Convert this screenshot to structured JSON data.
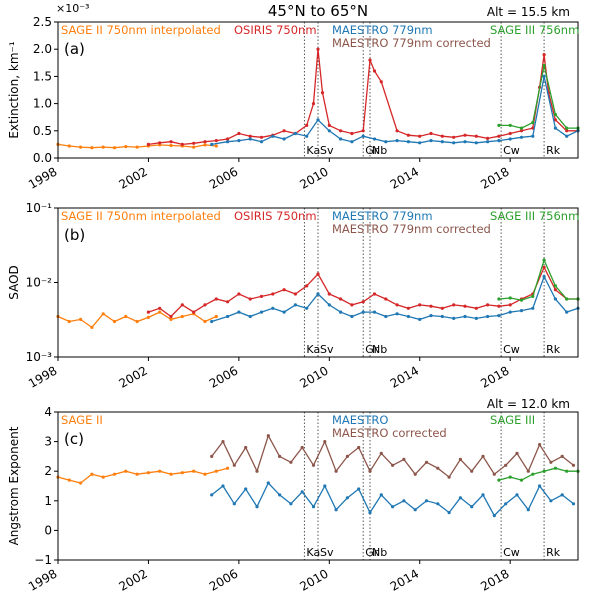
{
  "figure_title": "45°N to 65°N",
  "eras": [
    {
      "key": "ka",
      "label": "Ka",
      "x": 2008.9
    },
    {
      "key": "sv",
      "label": "Sv",
      "x": 2009.5
    },
    {
      "key": "gr",
      "label": "Gr",
      "x": 2011.5
    },
    {
      "key": "nb",
      "label": "Nb",
      "x": 2011.8
    },
    {
      "key": "cw",
      "label": "Cw",
      "x": 2017.6
    },
    {
      "key": "rk",
      "label": "Rk",
      "x": 2019.5
    }
  ],
  "colors": {
    "sage2": "#ff7f0e",
    "osiris": "#d62728",
    "maestro": "#1f77b4",
    "maestro_corr": "#8c564b",
    "sage3": "#2ca02c"
  },
  "chart_data": [
    {
      "type": "line",
      "panel": "(a)",
      "altitude": "Alt = 15.5 km",
      "scale_note": "×10⁻³",
      "ylabel": "Extinction, km⁻¹",
      "ylim": [
        0,
        2.5
      ],
      "yticks": [
        "0.0",
        "0.5",
        "1.0",
        "1.5",
        "2.0",
        "2.5"
      ],
      "xlim": [
        1998,
        2021
      ],
      "xticks": [
        "1998",
        "2002",
        "2006",
        "2010",
        "2014",
        "2018"
      ],
      "legend": [
        {
          "key": "sage2",
          "label": "SAGE II 750nm interpolated"
        },
        {
          "key": "osiris",
          "label": "OSIRIS 750nm"
        },
        {
          "key": "maestro",
          "label": "MAESTRO 779nm"
        },
        {
          "key": "maestro_corr",
          "label": "MAESTRO 779nm corrected"
        },
        {
          "key": "sage3",
          "label": "SAGE III 756nm"
        }
      ],
      "series": [
        {
          "key": "sage2",
          "x": [
            1998,
            1998.5,
            1999,
            1999.5,
            2000,
            2000.5,
            2001,
            2001.5,
            2002,
            2002.5,
            2003,
            2003.5,
            2004,
            2004.5,
            2005
          ],
          "y": [
            0.25,
            0.22,
            0.2,
            0.19,
            0.2,
            0.19,
            0.21,
            0.2,
            0.22,
            0.24,
            0.23,
            0.22,
            0.2,
            0.24,
            0.22
          ]
        },
        {
          "key": "osiris",
          "x": [
            2002,
            2002.5,
            2003,
            2003.5,
            2004,
            2004.5,
            2005,
            2005.5,
            2006,
            2006.5,
            2007,
            2007.5,
            2008,
            2008.5,
            2009,
            2009.3,
            2009.5,
            2009.7,
            2010,
            2010.5,
            2011,
            2011.5,
            2011.8,
            2012,
            2012.3,
            2013,
            2013.5,
            2014,
            2014.5,
            2015,
            2015.5,
            2016,
            2016.5,
            2017,
            2017.5,
            2018,
            2018.5,
            2019,
            2019.3,
            2019.5,
            2019.7,
            2020,
            2020.5,
            2021
          ],
          "y": [
            0.25,
            0.28,
            0.3,
            0.25,
            0.27,
            0.3,
            0.32,
            0.35,
            0.45,
            0.4,
            0.38,
            0.42,
            0.5,
            0.45,
            0.6,
            1.0,
            2.0,
            1.2,
            0.6,
            0.5,
            0.45,
            0.5,
            1.8,
            1.6,
            1.4,
            0.5,
            0.42,
            0.4,
            0.45,
            0.4,
            0.38,
            0.42,
            0.4,
            0.36,
            0.4,
            0.45,
            0.5,
            0.55,
            1.3,
            1.9,
            1.2,
            0.7,
            0.5,
            0.5
          ]
        },
        {
          "key": "maestro",
          "x": [
            2004.8,
            2005.5,
            2006,
            2006.5,
            2007,
            2007.5,
            2008,
            2008.5,
            2009,
            2009.5,
            2010,
            2010.5,
            2011,
            2011.5,
            2012,
            2012.5,
            2013,
            2013.5,
            2014,
            2014.5,
            2015,
            2015.5,
            2016,
            2016.5,
            2017,
            2017.5,
            2018,
            2018.5,
            2019,
            2019.5,
            2020,
            2020.5,
            2021
          ],
          "y": [
            0.25,
            0.3,
            0.32,
            0.35,
            0.3,
            0.4,
            0.35,
            0.45,
            0.4,
            0.7,
            0.5,
            0.35,
            0.3,
            0.4,
            0.35,
            0.3,
            0.32,
            0.3,
            0.28,
            0.32,
            0.3,
            0.28,
            0.3,
            0.28,
            0.3,
            0.32,
            0.35,
            0.38,
            0.4,
            1.5,
            0.55,
            0.4,
            0.5
          ]
        },
        {
          "key": "sage3",
          "x": [
            2017.5,
            2018,
            2018.5,
            2019,
            2019.5,
            2020,
            2020.5,
            2021
          ],
          "y": [
            0.6,
            0.6,
            0.55,
            0.65,
            1.7,
            0.8,
            0.55,
            0.55
          ]
        }
      ]
    },
    {
      "type": "line",
      "panel": "(b)",
      "ylabel": "SAOD",
      "yscale": "log",
      "ylim": [
        0.001,
        0.1
      ],
      "yticks": [
        "10⁻³",
        "10⁻²",
        "10⁻¹"
      ],
      "xlim": [
        1998,
        2021
      ],
      "xticks": [
        "1998",
        "2002",
        "2006",
        "2010",
        "2014",
        "2018"
      ],
      "legend": [
        {
          "key": "sage2",
          "label": "SAGE II 750nm interpolated"
        },
        {
          "key": "osiris",
          "label": "OSIRIS 750nm"
        },
        {
          "key": "maestro",
          "label": "MAESTRO 779nm"
        },
        {
          "key": "maestro_corr",
          "label": "MAESTRO 779nm corrected"
        },
        {
          "key": "sage3",
          "label": "SAGE III 756nm"
        }
      ],
      "series": [
        {
          "key": "sage2",
          "x": [
            1998,
            1998.5,
            1999,
            1999.5,
            2000,
            2000.5,
            2001,
            2001.5,
            2002,
            2002.5,
            2003,
            2003.5,
            2004,
            2004.5,
            2005
          ],
          "y": [
            0.0035,
            0.003,
            0.0032,
            0.0025,
            0.0038,
            0.003,
            0.0035,
            0.003,
            0.0034,
            0.004,
            0.0032,
            0.0035,
            0.0038,
            0.003,
            0.0035
          ]
        },
        {
          "key": "osiris",
          "x": [
            2002,
            2002.5,
            2003,
            2003.5,
            2004,
            2004.5,
            2005,
            2005.5,
            2006,
            2006.5,
            2007,
            2007.5,
            2008,
            2008.5,
            2009,
            2009.5,
            2010,
            2010.5,
            2011,
            2011.5,
            2012,
            2012.5,
            2013,
            2013.5,
            2014,
            2014.5,
            2015,
            2015.5,
            2016,
            2016.5,
            2017,
            2017.5,
            2018,
            2018.5,
            2019,
            2019.5,
            2020,
            2020.5,
            2021
          ],
          "y": [
            0.004,
            0.0045,
            0.0035,
            0.005,
            0.004,
            0.005,
            0.006,
            0.0055,
            0.007,
            0.006,
            0.0065,
            0.007,
            0.008,
            0.007,
            0.009,
            0.013,
            0.007,
            0.006,
            0.005,
            0.0055,
            0.007,
            0.006,
            0.005,
            0.0045,
            0.005,
            0.0048,
            0.0045,
            0.005,
            0.0048,
            0.0045,
            0.005,
            0.0048,
            0.005,
            0.006,
            0.007,
            0.016,
            0.008,
            0.006,
            0.006
          ]
        },
        {
          "key": "maestro",
          "x": [
            2004.8,
            2005.5,
            2006,
            2006.5,
            2007,
            2007.5,
            2008,
            2008.5,
            2009,
            2009.5,
            2010,
            2010.5,
            2011,
            2011.5,
            2012,
            2012.5,
            2013,
            2013.5,
            2014,
            2014.5,
            2015,
            2015.5,
            2016,
            2016.5,
            2017,
            2017.5,
            2018,
            2018.5,
            2019,
            2019.5,
            2020,
            2020.5,
            2021
          ],
          "y": [
            0.003,
            0.0035,
            0.004,
            0.0035,
            0.004,
            0.0045,
            0.004,
            0.005,
            0.0045,
            0.007,
            0.005,
            0.004,
            0.0035,
            0.004,
            0.004,
            0.0035,
            0.0038,
            0.0035,
            0.0032,
            0.0036,
            0.0035,
            0.0033,
            0.0035,
            0.0033,
            0.0035,
            0.0036,
            0.004,
            0.0042,
            0.0045,
            0.012,
            0.006,
            0.004,
            0.0045
          ]
        },
        {
          "key": "sage3",
          "x": [
            2017.5,
            2018,
            2018.5,
            2019,
            2019.5,
            2020,
            2020.5,
            2021
          ],
          "y": [
            0.006,
            0.0062,
            0.0058,
            0.0065,
            0.02,
            0.009,
            0.006,
            0.006
          ]
        }
      ]
    },
    {
      "type": "line",
      "panel": "(c)",
      "altitude": "Alt = 12.0 km",
      "ylabel": "Angstrom Exponent",
      "ylim": [
        -1,
        4
      ],
      "yticks": [
        "−1",
        "0",
        "1",
        "2",
        "3",
        "4"
      ],
      "xlim": [
        1998,
        2021
      ],
      "xticks": [
        "1998",
        "2002",
        "2006",
        "2010",
        "2014",
        "2018"
      ],
      "legend": [
        {
          "key": "sage2",
          "label": "SAGE II"
        },
        {
          "key": "maestro",
          "label": "MAESTRO"
        },
        {
          "key": "maestro_corr",
          "label": "MAESTRO corrected"
        },
        {
          "key": "sage3",
          "label": "SAGE III"
        }
      ],
      "series": [
        {
          "key": "sage2",
          "x": [
            1998,
            1998.5,
            1999,
            1999.5,
            2000,
            2000.5,
            2001,
            2001.5,
            2002,
            2002.5,
            2003,
            2003.5,
            2004,
            2004.5,
            2005,
            2005.5
          ],
          "y": [
            1.8,
            1.7,
            1.6,
            1.9,
            1.8,
            1.9,
            2.0,
            1.9,
            1.95,
            2.0,
            1.9,
            1.95,
            2.0,
            1.9,
            2.0,
            2.1
          ]
        },
        {
          "key": "maestro_corr",
          "x": [
            2004.8,
            2005.3,
            2005.8,
            2006.3,
            2006.8,
            2007.3,
            2007.8,
            2008.3,
            2008.8,
            2009.3,
            2009.8,
            2010.3,
            2010.8,
            2011.3,
            2011.8,
            2012.3,
            2012.8,
            2013.3,
            2013.8,
            2014.3,
            2014.8,
            2015.3,
            2015.8,
            2016.3,
            2016.8,
            2017.3,
            2017.8,
            2018.3,
            2018.8,
            2019.3,
            2019.8,
            2020.3,
            2020.8
          ],
          "y": [
            2.5,
            3.0,
            2.2,
            2.8,
            2.0,
            3.2,
            2.5,
            2.3,
            2.8,
            2.2,
            3.0,
            2.0,
            2.5,
            2.8,
            2.0,
            2.6,
            2.2,
            2.4,
            1.9,
            2.3,
            2.1,
            1.8,
            2.4,
            2.0,
            2.5,
            1.9,
            2.2,
            2.6,
            2.0,
            2.9,
            2.3,
            2.5,
            2.2
          ]
        },
        {
          "key": "maestro",
          "x": [
            2004.8,
            2005.3,
            2005.8,
            2006.3,
            2006.8,
            2007.3,
            2007.8,
            2008.3,
            2008.8,
            2009.3,
            2009.8,
            2010.3,
            2010.8,
            2011.3,
            2011.8,
            2012.3,
            2012.8,
            2013.3,
            2013.8,
            2014.3,
            2014.8,
            2015.3,
            2015.8,
            2016.3,
            2016.8,
            2017.3,
            2017.8,
            2018.3,
            2018.8,
            2019.3,
            2019.8,
            2020.3,
            2020.8
          ],
          "y": [
            1.2,
            1.5,
            0.9,
            1.4,
            0.8,
            1.6,
            1.2,
            0.9,
            1.3,
            0.8,
            1.5,
            0.7,
            1.1,
            1.4,
            0.6,
            1.2,
            0.8,
            1.0,
            0.7,
            1.0,
            0.9,
            0.6,
            1.1,
            0.8,
            1.2,
            0.5,
            0.9,
            1.2,
            0.7,
            1.5,
            1.0,
            1.2,
            0.9
          ]
        },
        {
          "key": "sage3",
          "x": [
            2017.5,
            2018,
            2018.5,
            2019,
            2019.5,
            2020,
            2020.5,
            2021
          ],
          "y": [
            1.7,
            1.8,
            1.7,
            1.9,
            2.0,
            2.1,
            2.0,
            2.0
          ]
        }
      ]
    }
  ]
}
